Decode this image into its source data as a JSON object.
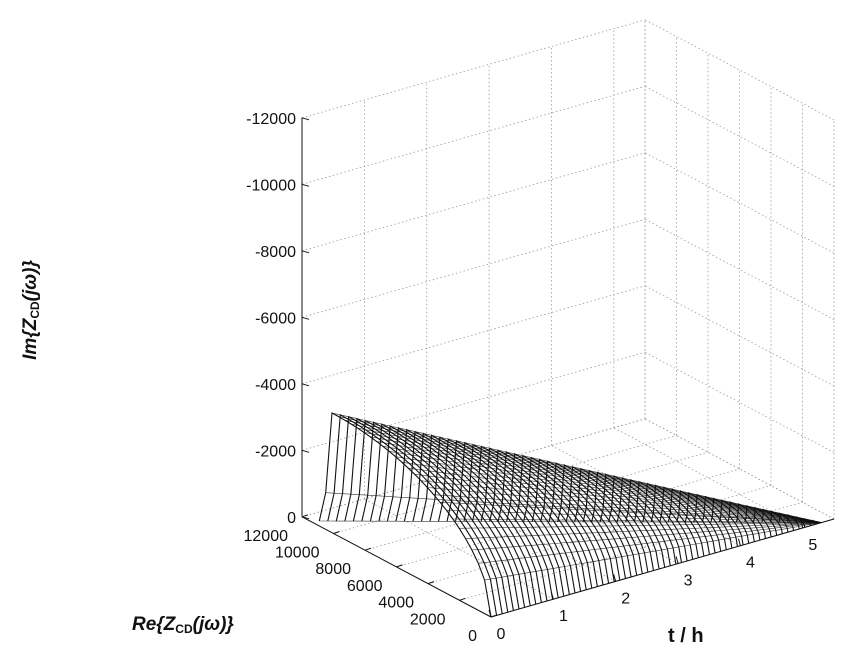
{
  "chart_data": {
    "type": "3d-line",
    "title": "",
    "xlabel": "Re{Z_CD(jω)}",
    "ylabel": "t / h",
    "zlabel": "Im{Z_CD(jω)}",
    "xlim": [
      0,
      12000
    ],
    "ylim": [
      0,
      5.5
    ],
    "zlim": [
      0,
      -12000
    ],
    "x_ticks": [
      "0",
      "2000",
      "4000",
      "6000",
      "8000",
      "10000",
      "12000"
    ],
    "y_ticks": [
      "0",
      "1",
      "2",
      "3",
      "4",
      "5"
    ],
    "z_ticks": [
      "0",
      "-2000",
      "-4000",
      "-6000",
      "-8000",
      "-10000",
      "-12000"
    ],
    "grid": true,
    "series_description": "Impedance spectra recorded at successive times; each spectrum is an arc from Re≈0 to Re≈10900",
    "t_start": 0,
    "t_end": 5.3,
    "n_spectra": 60,
    "re_max_start": 10900,
    "re_max_end": 0,
    "im_peak_start": -3600,
    "im_peak_end": 0,
    "tail_im": -150
  },
  "labels": {
    "z_axis_prefix": "Im{Z",
    "z_axis_sub": "CD",
    "z_axis_suffix": "(jω)}",
    "x_axis_prefix": "Re{Z",
    "x_axis_sub": "CD",
    "x_axis_suffix": "(jω)}",
    "y_axis_text": "t / h"
  }
}
